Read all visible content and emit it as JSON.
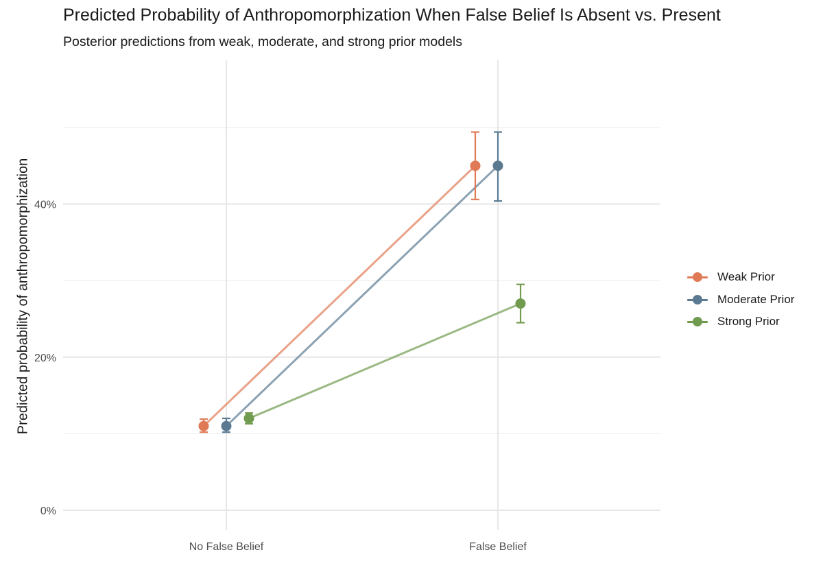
{
  "title": "Predicted Probability of Anthropomorphization When False Belief Is Absent vs. Present",
  "subtitle": "Posterior predictions from weak, moderate, and strong prior models",
  "chart_data": {
    "type": "line",
    "title": "Predicted Probability of Anthropomorphization When False Belief Is Absent vs. Present",
    "subtitle": "Posterior predictions from weak, moderate, and strong prior models",
    "xlabel": "",
    "ylabel": "Predicted probability of anthropomorphization",
    "categories": [
      "No False Belief",
      "False Belief"
    ],
    "y_ticks": [
      0,
      0.2,
      0.4
    ],
    "y_tick_labels": [
      "0%",
      "20%",
      "40%"
    ],
    "ylim": [
      0,
      0.52
    ],
    "grid": true,
    "legend_position": "right",
    "series": [
      {
        "name": "Weak Prior",
        "color": "#E07A56",
        "values": [
          0.11,
          0.45
        ],
        "lower": [
          0.102,
          0.406
        ],
        "upper": [
          0.119,
          0.494
        ]
      },
      {
        "name": "Moderate Prior",
        "color": "#5B7A91",
        "values": [
          0.11,
          0.45
        ],
        "lower": [
          0.102,
          0.404
        ],
        "upper": [
          0.12,
          0.494
        ]
      },
      {
        "name": "Strong Prior",
        "color": "#719B4E",
        "values": [
          0.12,
          0.27
        ],
        "lower": [
          0.113,
          0.245
        ],
        "upper": [
          0.127,
          0.295
        ]
      }
    ]
  }
}
